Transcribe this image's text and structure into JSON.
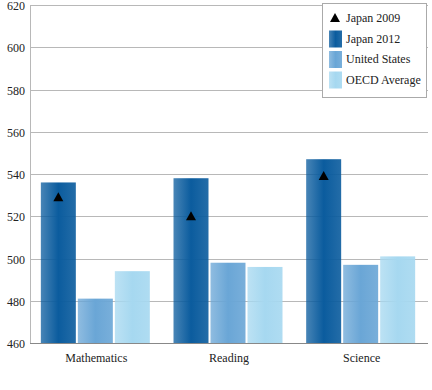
{
  "chart_data": {
    "type": "bar",
    "categories": [
      "Mathematics",
      "Reading",
      "Science"
    ],
    "series": [
      {
        "name": "Japan 2009",
        "type": "scatter",
        "marker": "triangle",
        "color": "#000000",
        "values": [
          529,
          520,
          539
        ]
      },
      {
        "name": "Japan 2012",
        "type": "bar",
        "color": "#0b5c9e",
        "values": [
          536,
          538,
          547
        ]
      },
      {
        "name": "United States",
        "type": "bar",
        "color": "#6aa6d6",
        "values": [
          481,
          498,
          497
        ]
      },
      {
        "name": "OECD Average",
        "type": "bar",
        "color": "#a6d8f0",
        "values": [
          494,
          496,
          501
        ]
      }
    ],
    "ylim": [
      460,
      620
    ],
    "yticks": [
      460,
      480,
      500,
      520,
      540,
      560,
      580,
      600,
      620
    ],
    "grid": true,
    "legend": "upper right"
  }
}
